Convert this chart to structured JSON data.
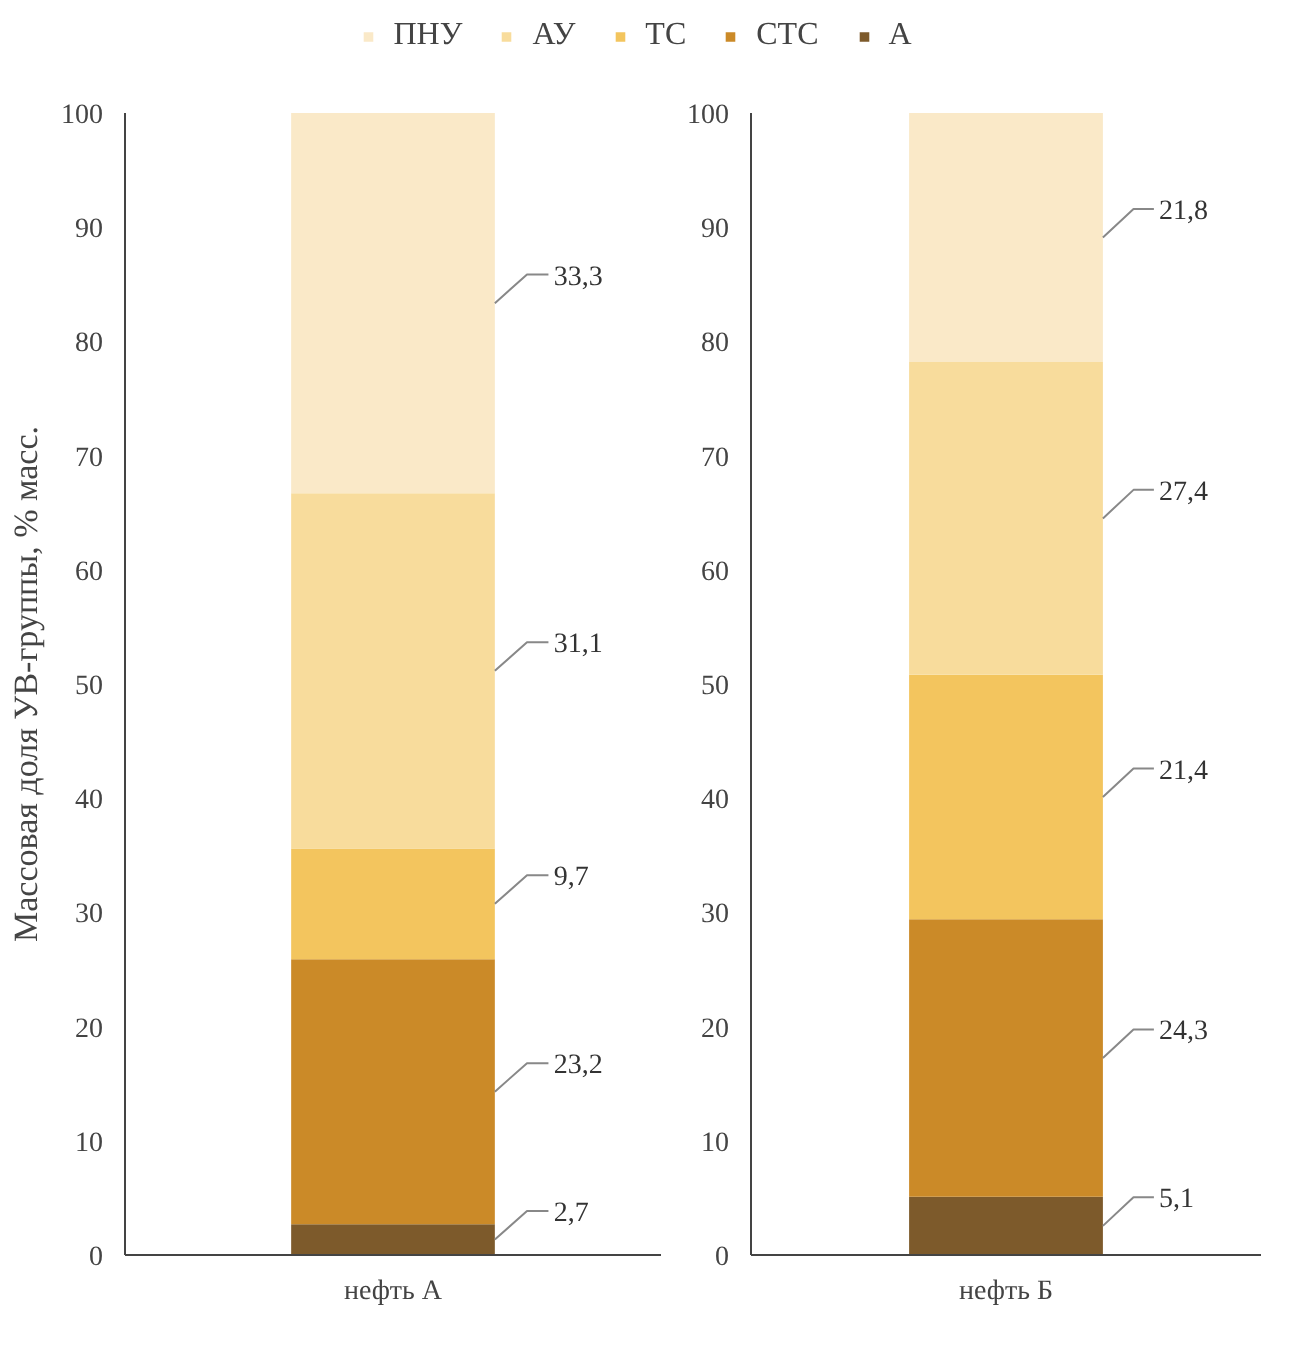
{
  "chart_data": [
    {
      "type": "bar",
      "stacked": true,
      "categories": [
        "нефть А"
      ],
      "ylabel": "Массовая доля УВ-группы, % масс.",
      "ylim": [
        0,
        100
      ],
      "yticks": [
        0,
        10,
        20,
        30,
        40,
        50,
        60,
        70,
        80,
        90,
        100
      ],
      "legend": "top",
      "series": [
        {
          "name": "А",
          "color": "#7d5a2b",
          "values": [
            2.7
          ],
          "value_labels": [
            "2,7"
          ]
        },
        {
          "name": "СТС",
          "color": "#cb8a28",
          "values": [
            23.2
          ],
          "value_labels": [
            "23,2"
          ]
        },
        {
          "name": "ТС",
          "color": "#f3c55e",
          "values": [
            9.7
          ],
          "value_labels": [
            "9,7"
          ]
        },
        {
          "name": "АУ",
          "color": "#f8dc9c",
          "values": [
            31.1
          ],
          "value_labels": [
            "31,1"
          ]
        },
        {
          "name": "ПНУ",
          "color": "#fae9c8",
          "values": [
            33.3
          ],
          "value_labels": [
            "33,3"
          ]
        }
      ]
    },
    {
      "type": "bar",
      "stacked": true,
      "categories": [
        "нефть Б"
      ],
      "ylim": [
        0,
        100
      ],
      "yticks": [
        0,
        10,
        20,
        30,
        40,
        50,
        60,
        70,
        80,
        90,
        100
      ],
      "series": [
        {
          "color": "#7d5a2b",
          "values": [
            5.1
          ],
          "value_labels": [
            "5,1"
          ]
        },
        {
          "color": "#cb8a28",
          "values": [
            24.3
          ],
          "value_labels": [
            "24,3"
          ]
        },
        {
          "color": "#f3c55e",
          "values": [
            21.4
          ],
          "value_labels": [
            "21,4"
          ]
        },
        {
          "color": "#f8dc9c",
          "values": [
            27.4
          ],
          "value_labels": [
            "27,4"
          ]
        },
        {
          "color": "#fae9c8",
          "values": [
            21.8
          ],
          "value_labels": [
            "21,8"
          ]
        }
      ]
    }
  ]
}
